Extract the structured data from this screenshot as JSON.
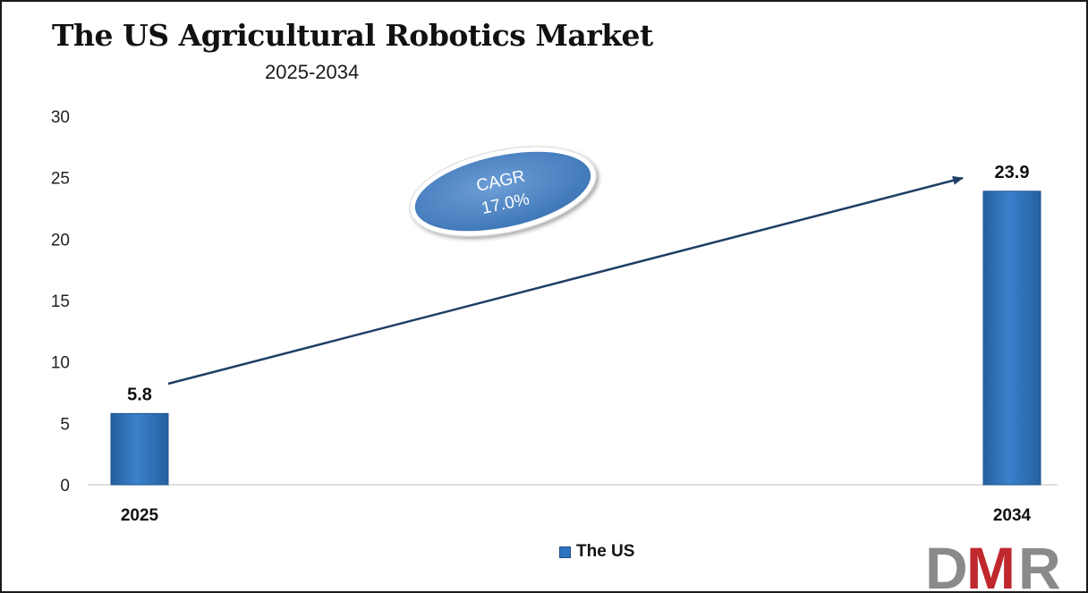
{
  "chart_data": {
    "type": "bar",
    "title": "The US Agricultural Robotics Market",
    "subtitle": "2025-2034",
    "categories": [
      "2025",
      "2034"
    ],
    "series": [
      {
        "name": "The US",
        "values": [
          5.8,
          23.9
        ],
        "color": "#2e74c0"
      }
    ],
    "data_labels": [
      "5.8",
      "23.9"
    ],
    "y_ticks": [
      "0",
      "5",
      "10",
      "15",
      "20",
      "25",
      "30"
    ],
    "ylim": [
      0,
      30
    ],
    "grid": false,
    "legend": {
      "position": "bottom",
      "entries": [
        "The US"
      ]
    },
    "annotation": {
      "line1": "CAGR",
      "line2": "17.0%",
      "color": "#5b8fca"
    },
    "arrow_color": "#1f3f66"
  },
  "logo": {
    "text": "DMR",
    "colors": [
      "#8a8a8a",
      "#c0282d"
    ]
  }
}
